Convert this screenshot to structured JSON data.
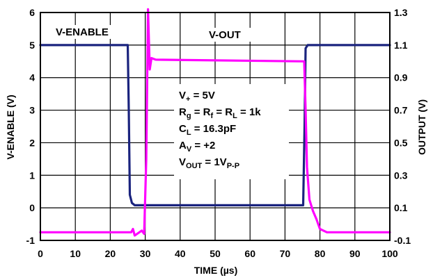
{
  "chart_data": {
    "type": "line",
    "xlabel": "TIME (µs)",
    "ylabel_left": "V-ENABLE (V)",
    "ylabel_right": "OUTPUT (V)",
    "xlim": [
      0,
      100
    ],
    "ylim_left": [
      -1,
      6
    ],
    "ylim_right": [
      -0.1,
      1.3
    ],
    "grid": true,
    "x_ticks": [
      "0",
      "10",
      "20",
      "30",
      "40",
      "50",
      "60",
      "70",
      "80",
      "90",
      "100"
    ],
    "y_left_ticks": [
      "-1",
      "0",
      "1",
      "2",
      "3",
      "4",
      "5",
      "6"
    ],
    "y_right_ticks": [
      "-0.1",
      "0.1",
      "0.3",
      "0.5",
      "0.7",
      "0.9",
      "1.1",
      "1.3"
    ],
    "series": [
      {
        "name": "V-ENABLE",
        "axis": "left",
        "color": "#1a237e",
        "points": [
          [
            0,
            5.0
          ],
          [
            25.0,
            5.0
          ],
          [
            25.3,
            3.0
          ],
          [
            25.6,
            0.4
          ],
          [
            26.2,
            0.15
          ],
          [
            27,
            0.08
          ],
          [
            75.2,
            0.08
          ],
          [
            75.6,
            2.5
          ],
          [
            75.9,
            4.9
          ],
          [
            76.5,
            5.0
          ],
          [
            100,
            5.0
          ]
        ]
      },
      {
        "name": "V-OUT",
        "axis": "right",
        "color": "#ff00ff",
        "points": [
          [
            0,
            -0.05
          ],
          [
            26,
            -0.05
          ],
          [
            26.5,
            -0.03
          ],
          [
            27,
            -0.07
          ],
          [
            29,
            -0.04
          ],
          [
            29.7,
            -0.06
          ],
          [
            30.3,
            0.4
          ],
          [
            30.8,
            1.32
          ],
          [
            31.3,
            0.95
          ],
          [
            31.8,
            1.02
          ],
          [
            33,
            1.01
          ],
          [
            75.5,
            1.0
          ],
          [
            75.9,
            0.7
          ],
          [
            76.3,
            0.35
          ],
          [
            77,
            0.15
          ],
          [
            78,
            0.08
          ],
          [
            79,
            0.03
          ],
          [
            80,
            -0.03
          ],
          [
            82,
            -0.05
          ],
          [
            100,
            -0.05
          ]
        ]
      }
    ],
    "annotations": {
      "venable_label": "V-ENABLE",
      "vout_label": "V-OUT",
      "conditions": [
        {
          "main": "V",
          "sub": "+",
          "rest": " = 5V"
        },
        {
          "main": "R",
          "sub": "g",
          "rest": " = R",
          "sub2": "f",
          "rest2": " = R",
          "sub3": "L",
          "rest3": " = 1k"
        },
        {
          "main": "C",
          "sub": "L",
          "rest": " = 16.3pF"
        },
        {
          "main": "A",
          "sub": "V",
          "rest": " = +2"
        },
        {
          "main": "V",
          "sub": "OUT",
          "rest": " = 1V",
          "sub2": "P-P",
          "rest2": ""
        }
      ]
    }
  }
}
